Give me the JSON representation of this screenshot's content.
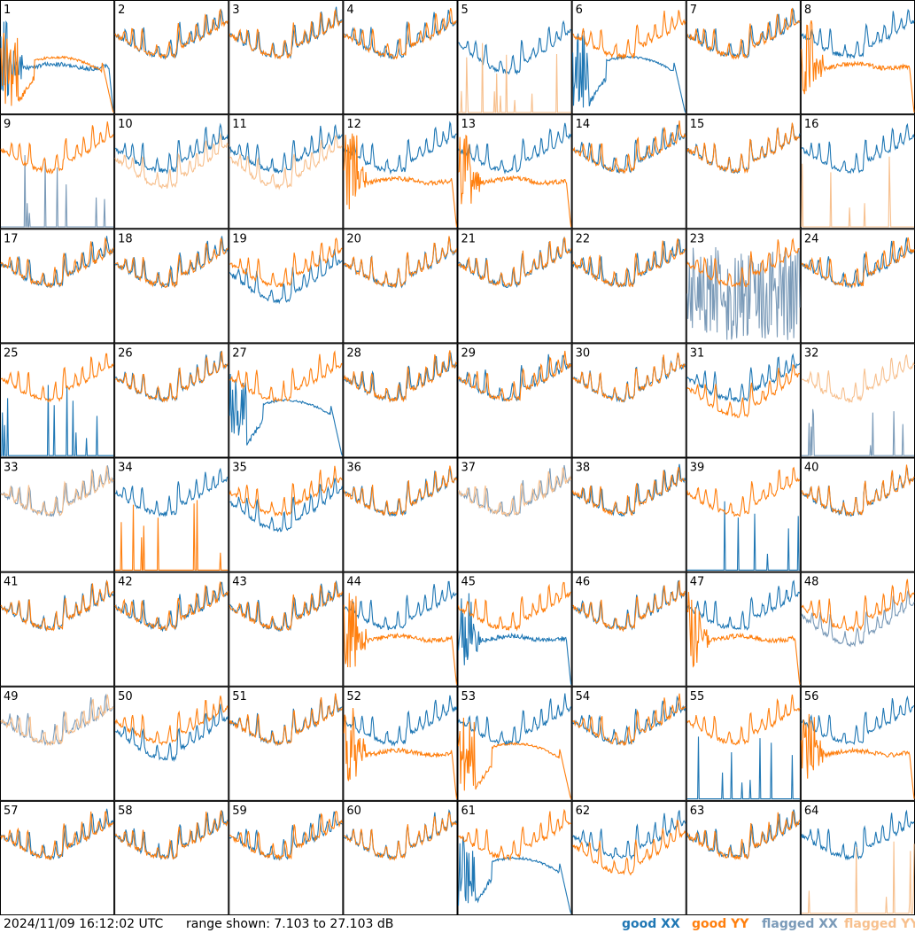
{
  "footer": {
    "timestamp": "2024/11/09 16:12:02 UTC",
    "range_text": "range shown: 7.103 to 27.103 dB"
  },
  "legend": [
    {
      "label": "good XX",
      "color": "#1f77b4"
    },
    {
      "label": "good YY",
      "color": "#ff7f0e"
    },
    {
      "label": "flagged XX",
      "color": "#7a9ab8"
    },
    {
      "label": "flagged YY",
      "color": "#f7c08e"
    }
  ],
  "chart_data": {
    "type": "line",
    "title": "",
    "grid": {
      "rows": 8,
      "cols": 8
    },
    "range_db": [
      7.103,
      27.103
    ],
    "series_names": [
      "good XX",
      "good YY",
      "flagged XX",
      "flagged YY"
    ],
    "panels": [
      {
        "id": "1",
        "xx": "bad-flat",
        "yy": "bad-drop",
        "xx_flag": false,
        "yy_flag": false
      },
      {
        "id": "2",
        "xx": "normal",
        "yy": "normal",
        "xx_flag": false,
        "yy_flag": false
      },
      {
        "id": "3",
        "xx": "normal",
        "yy": "normal",
        "xx_flag": false,
        "yy_flag": false
      },
      {
        "id": "4",
        "xx": "normal",
        "yy": "normal",
        "xx_flag": false,
        "yy_flag": false
      },
      {
        "id": "5",
        "xx": "normal-low",
        "yy": "spikes",
        "xx_flag": false,
        "yy_flag": true
      },
      {
        "id": "6",
        "xx": "bad-drop",
        "yy": "normal",
        "xx_flag": false,
        "yy_flag": false
      },
      {
        "id": "7",
        "xx": "normal",
        "yy": "normal",
        "xx_flag": false,
        "yy_flag": false
      },
      {
        "id": "8",
        "xx": "normal",
        "yy": "bad-flat",
        "xx_flag": false,
        "yy_flag": false
      },
      {
        "id": "9",
        "xx": "spikes",
        "yy": "normal",
        "xx_flag": true,
        "yy_flag": false
      },
      {
        "id": "10",
        "xx": "normal",
        "yy": "normal-low",
        "xx_flag": false,
        "yy_flag": true
      },
      {
        "id": "11",
        "xx": "normal",
        "yy": "normal-low",
        "xx_flag": false,
        "yy_flag": true
      },
      {
        "id": "12",
        "xx": "normal",
        "yy": "bad-flat",
        "xx_flag": false,
        "yy_flag": false
      },
      {
        "id": "13",
        "xx": "normal",
        "yy": "bad-flat",
        "xx_flag": false,
        "yy_flag": false
      },
      {
        "id": "14",
        "xx": "normal",
        "yy": "normal",
        "xx_flag": false,
        "yy_flag": false
      },
      {
        "id": "15",
        "xx": "normal",
        "yy": "normal",
        "xx_flag": false,
        "yy_flag": false
      },
      {
        "id": "16",
        "xx": "normal",
        "yy": "spikes",
        "xx_flag": false,
        "yy_flag": true
      },
      {
        "id": "17",
        "xx": "normal",
        "yy": "normal",
        "xx_flag": false,
        "yy_flag": false
      },
      {
        "id": "18",
        "xx": "normal",
        "yy": "normal",
        "xx_flag": false,
        "yy_flag": false
      },
      {
        "id": "19",
        "xx": "normal-low",
        "yy": "normal",
        "xx_flag": false,
        "yy_flag": false
      },
      {
        "id": "20",
        "xx": "normal",
        "yy": "normal",
        "xx_flag": false,
        "yy_flag": false
      },
      {
        "id": "21",
        "xx": "normal",
        "yy": "normal",
        "xx_flag": false,
        "yy_flag": false
      },
      {
        "id": "22",
        "xx": "normal",
        "yy": "normal",
        "xx_flag": false,
        "yy_flag": false
      },
      {
        "id": "23",
        "xx": "noisy",
        "yy": "normal",
        "xx_flag": true,
        "yy_flag": false
      },
      {
        "id": "24",
        "xx": "normal",
        "yy": "normal",
        "xx_flag": false,
        "yy_flag": false
      },
      {
        "id": "25",
        "xx": "spikes",
        "yy": "normal",
        "xx_flag": false,
        "yy_flag": false
      },
      {
        "id": "26",
        "xx": "normal",
        "yy": "normal",
        "xx_flag": false,
        "yy_flag": false
      },
      {
        "id": "27",
        "xx": "bad-drop",
        "yy": "normal",
        "xx_flag": false,
        "yy_flag": false
      },
      {
        "id": "28",
        "xx": "normal",
        "yy": "normal",
        "xx_flag": false,
        "yy_flag": false
      },
      {
        "id": "29",
        "xx": "normal",
        "yy": "normal",
        "xx_flag": false,
        "yy_flag": false
      },
      {
        "id": "30",
        "xx": "normal",
        "yy": "normal",
        "xx_flag": false,
        "yy_flag": false
      },
      {
        "id": "31",
        "xx": "normal",
        "yy": "normal-low",
        "xx_flag": false,
        "yy_flag": false
      },
      {
        "id": "32",
        "xx": "spikes",
        "yy": "normal",
        "xx_flag": true,
        "yy_flag": true
      },
      {
        "id": "33",
        "xx": "normal",
        "yy": "normal",
        "xx_flag": true,
        "yy_flag": true
      },
      {
        "id": "34",
        "xx": "normal",
        "yy": "spikes",
        "xx_flag": false,
        "yy_flag": false
      },
      {
        "id": "35",
        "xx": "normal-low",
        "yy": "normal",
        "xx_flag": false,
        "yy_flag": false
      },
      {
        "id": "36",
        "xx": "normal",
        "yy": "normal",
        "xx_flag": false,
        "yy_flag": false
      },
      {
        "id": "37",
        "xx": "normal",
        "yy": "normal",
        "xx_flag": true,
        "yy_flag": true
      },
      {
        "id": "38",
        "xx": "normal",
        "yy": "normal",
        "xx_flag": false,
        "yy_flag": false
      },
      {
        "id": "39",
        "xx": "spikes",
        "yy": "normal",
        "xx_flag": false,
        "yy_flag": false
      },
      {
        "id": "40",
        "xx": "normal",
        "yy": "normal",
        "xx_flag": false,
        "yy_flag": false
      },
      {
        "id": "41",
        "xx": "normal",
        "yy": "normal",
        "xx_flag": false,
        "yy_flag": false
      },
      {
        "id": "42",
        "xx": "normal",
        "yy": "normal",
        "xx_flag": false,
        "yy_flag": false
      },
      {
        "id": "43",
        "xx": "normal",
        "yy": "normal",
        "xx_flag": false,
        "yy_flag": false
      },
      {
        "id": "44",
        "xx": "normal",
        "yy": "bad-flat",
        "xx_flag": false,
        "yy_flag": false
      },
      {
        "id": "45",
        "xx": "bad-flat",
        "yy": "normal",
        "xx_flag": false,
        "yy_flag": false
      },
      {
        "id": "46",
        "xx": "normal",
        "yy": "normal",
        "xx_flag": false,
        "yy_flag": false
      },
      {
        "id": "47",
        "xx": "normal",
        "yy": "bad-flat",
        "xx_flag": false,
        "yy_flag": false
      },
      {
        "id": "48",
        "xx": "normal-low",
        "yy": "normal",
        "xx_flag": true,
        "yy_flag": false
      },
      {
        "id": "49",
        "xx": "normal",
        "yy": "normal",
        "xx_flag": true,
        "yy_flag": true
      },
      {
        "id": "50",
        "xx": "normal-low",
        "yy": "normal",
        "xx_flag": false,
        "yy_flag": false
      },
      {
        "id": "51",
        "xx": "normal",
        "yy": "normal",
        "xx_flag": false,
        "yy_flag": false
      },
      {
        "id": "52",
        "xx": "normal",
        "yy": "bad-flat",
        "xx_flag": false,
        "yy_flag": false
      },
      {
        "id": "53",
        "xx": "normal",
        "yy": "bad-drop",
        "xx_flag": false,
        "yy_flag": false
      },
      {
        "id": "54",
        "xx": "normal",
        "yy": "normal",
        "xx_flag": false,
        "yy_flag": false
      },
      {
        "id": "55",
        "xx": "spikes",
        "yy": "normal",
        "xx_flag": false,
        "yy_flag": false
      },
      {
        "id": "56",
        "xx": "normal",
        "yy": "bad-flat",
        "xx_flag": false,
        "yy_flag": false
      },
      {
        "id": "57",
        "xx": "normal",
        "yy": "normal",
        "xx_flag": false,
        "yy_flag": false
      },
      {
        "id": "58",
        "xx": "normal",
        "yy": "normal",
        "xx_flag": false,
        "yy_flag": false
      },
      {
        "id": "59",
        "xx": "normal",
        "yy": "normal",
        "xx_flag": false,
        "yy_flag": false
      },
      {
        "id": "60",
        "xx": "normal",
        "yy": "normal",
        "xx_flag": false,
        "yy_flag": false
      },
      {
        "id": "61",
        "xx": "bad-drop",
        "yy": "normal",
        "xx_flag": false,
        "yy_flag": false
      },
      {
        "id": "62",
        "xx": "normal",
        "yy": "normal-low",
        "xx_flag": false,
        "yy_flag": false
      },
      {
        "id": "63",
        "xx": "normal",
        "yy": "normal",
        "xx_flag": false,
        "yy_flag": false
      },
      {
        "id": "64",
        "xx": "normal",
        "yy": "spikes",
        "xx_flag": false,
        "yy_flag": true
      }
    ]
  }
}
